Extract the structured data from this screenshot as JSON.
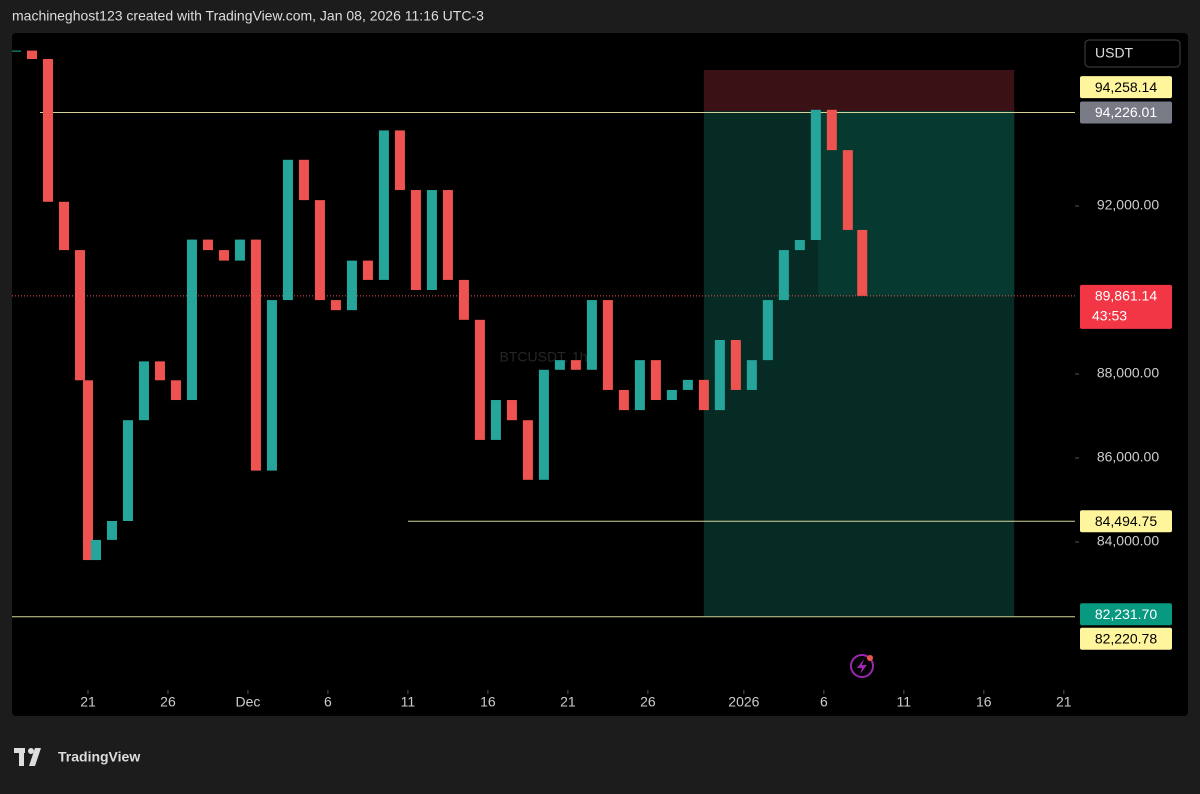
{
  "header": "machineghost123 created with TradingView.com, Jan 08, 2026 11:16 UTC-3",
  "footer": "TradingView",
  "chart_data": {
    "type": "candlestick",
    "watermark": "BTCUSDT, 1h",
    "currency": "USDT",
    "up_color": "#26a69a",
    "down_color": "#ef5350",
    "x": [
      -4.5,
      -3.5,
      -2.5,
      -1.5,
      -0.5,
      0,
      0.5,
      1.5,
      2.5,
      3.5,
      4.5,
      5.5,
      6.5,
      7.5,
      8.5,
      9.5,
      10.5,
      11.5,
      12.5,
      13.5,
      14.5,
      15.5,
      16.5,
      17.5,
      18.5,
      19.5,
      20.5,
      21.5,
      22.5,
      23.5,
      24.5,
      25.5,
      26.5,
      27.5,
      28.5,
      29.5,
      30.5,
      31.5,
      32.5,
      33.5,
      34.5,
      35.5,
      36.5,
      37.5,
      38.5,
      39.5,
      40.5,
      41.5,
      42.5,
      43.5,
      44.5,
      45.5,
      46.5,
      47.5,
      48.4
    ],
    "values": [
      95700,
      95500,
      92100,
      90950,
      87850,
      83570,
      84050,
      84500,
      86900,
      88300,
      87850,
      87380,
      91200,
      90950,
      90700,
      91200,
      85700,
      89760,
      93100,
      92140,
      89760,
      89520,
      90700,
      90240,
      93800,
      92380,
      90000,
      92380,
      90240,
      89290,
      86430,
      87380,
      86900,
      85480,
      88100,
      88330,
      88100,
      89760,
      87620,
      87140,
      88330,
      87380,
      87620,
      87860,
      87140,
      88810,
      87620,
      88330,
      89760,
      90950,
      91190,
      94290,
      93330,
      91430,
      89861.14
    ],
    "xlim": [
      -4.75,
      61.7
    ],
    "ylim": [
      80476,
      96119
    ],
    "xticks": [
      {
        "value": 0,
        "label": "21"
      },
      {
        "value": 5,
        "label": "26"
      },
      {
        "value": 10,
        "label": "Dec"
      },
      {
        "value": 15,
        "label": "6"
      },
      {
        "value": 20,
        "label": "11"
      },
      {
        "value": 25,
        "label": "16"
      },
      {
        "value": 30,
        "label": "21"
      },
      {
        "value": 35,
        "label": "26"
      },
      {
        "value": 41,
        "label": "2026"
      },
      {
        "value": 46,
        "label": "6"
      },
      {
        "value": 51,
        "label": "11"
      },
      {
        "value": 56,
        "label": "16"
      },
      {
        "value": 61,
        "label": "21"
      }
    ],
    "yticks": [
      {
        "value": 84000,
        "label": "84,000.00"
      },
      {
        "value": 86000,
        "label": "86,000.00"
      },
      {
        "value": 88000,
        "label": "88,000.00"
      },
      {
        "value": 92000,
        "label": "92,000.00"
      }
    ],
    "levels": [
      {
        "value": 94226.01,
        "label": "94,226.01",
        "x_start": -3,
        "color": "#787b86",
        "text_color": "#ffffff"
      },
      {
        "value": 84494.75,
        "label": "84,494.75",
        "x_start": 20,
        "color": "#fff59d",
        "text_color": "#000000"
      },
      {
        "value": 82220.78,
        "label": "82,220.78",
        "x_start": -4.75,
        "color": "#fff59d",
        "text_color": "#000000"
      }
    ],
    "position": {
      "x_start": 38.5,
      "x_end": 57.9,
      "stop": 95240,
      "entry": {
        "value": 94258.14,
        "label": "94,258.14"
      },
      "target": {
        "value": 82231.7,
        "label": "82,231.70"
      }
    },
    "last_price": {
      "value": 89861.14,
      "label": "89,861.14",
      "countdown": "43:53"
    }
  }
}
